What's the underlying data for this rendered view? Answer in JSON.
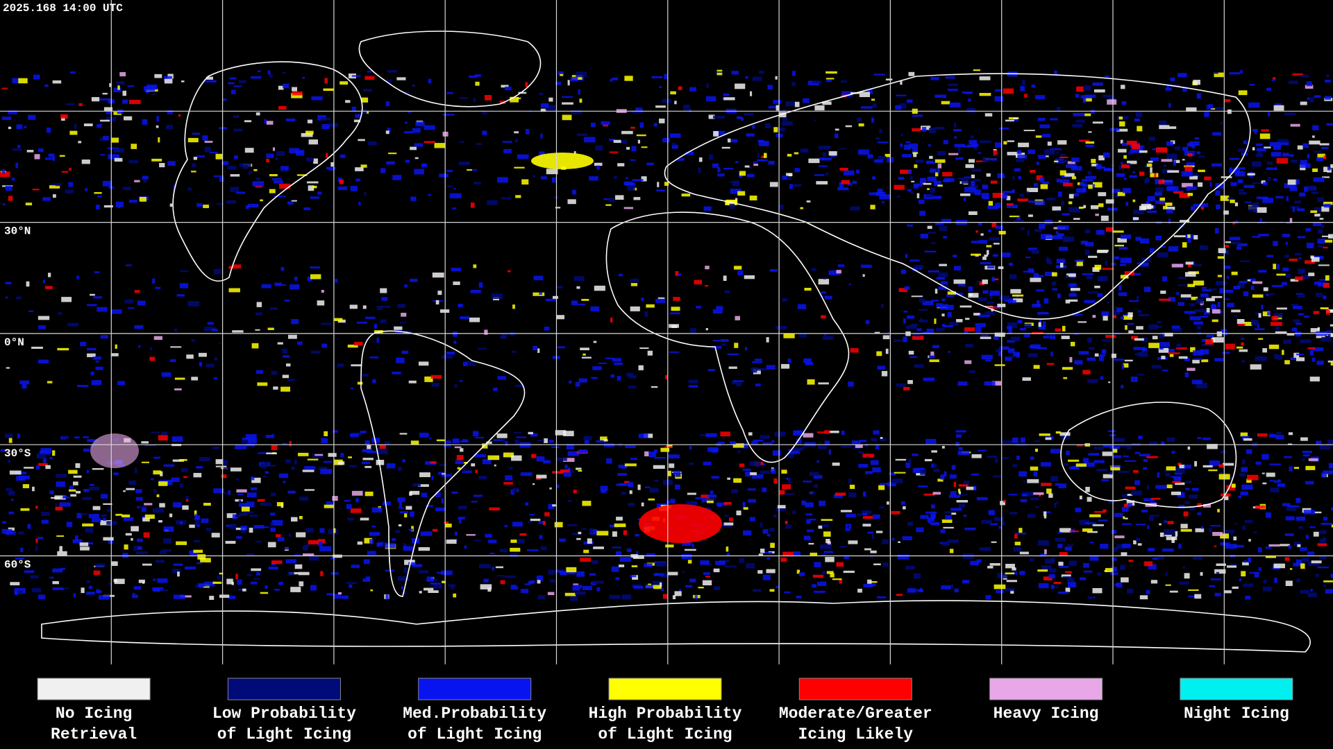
{
  "header": {
    "timestamp": "2025.168 14:00 UTC"
  },
  "map": {
    "latitude_labels": [
      "30°N",
      "0°N",
      "30°S",
      "60°S"
    ]
  },
  "legend": {
    "items": [
      {
        "color": "#f0f0f0",
        "lines": [
          "No Icing",
          "Retrieval"
        ]
      },
      {
        "color": "#000a78",
        "lines": [
          "Low Probability",
          "of Light Icing"
        ]
      },
      {
        "color": "#0814f0",
        "lines": [
          "Med.Probability",
          "of Light Icing"
        ]
      },
      {
        "color": "#ffff00",
        "lines": [
          "High Probability",
          "of Light Icing"
        ]
      },
      {
        "color": "#ff0000",
        "lines": [
          "Moderate/Greater",
          "Icing Likely"
        ]
      },
      {
        "color": "#e8a8e8",
        "lines": [
          "Heavy Icing"
        ]
      },
      {
        "color": "#00f0f0",
        "lines": [
          "Night Icing"
        ]
      }
    ]
  }
}
